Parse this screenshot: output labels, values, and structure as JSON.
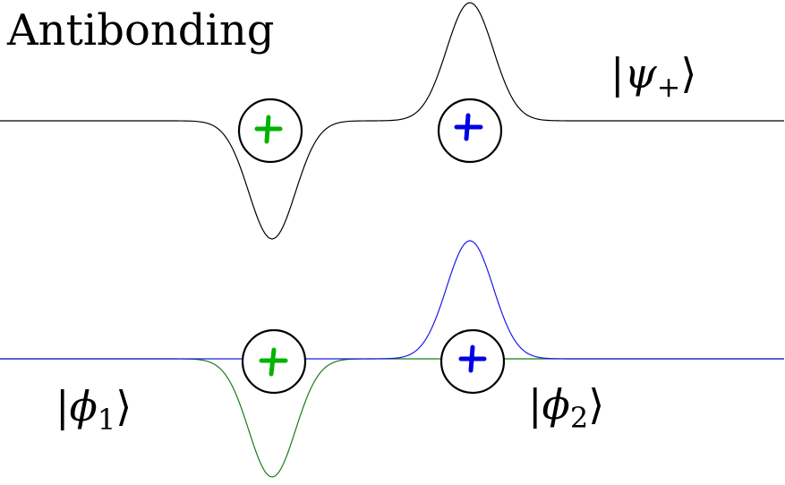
{
  "title": "Antibonding",
  "kets": {
    "psi_plus": {
      "symbol": "ψ",
      "subscript": "+"
    },
    "phi_1": {
      "symbol": "ϕ",
      "subscript": "1"
    },
    "phi_2": {
      "symbol": "ϕ",
      "subscript": "2"
    },
    "bra_bar": "|",
    "ket_close": "⟩"
  },
  "nuclei": {
    "left": {
      "charge": "+",
      "color": "#00b400"
    },
    "right": {
      "charge": "+",
      "color": "#0000e6"
    }
  },
  "colors": {
    "psi_curve": "#000000",
    "phi1_curve": "#1a7a1a",
    "phi2_curve": "#1a1ae6"
  }
}
